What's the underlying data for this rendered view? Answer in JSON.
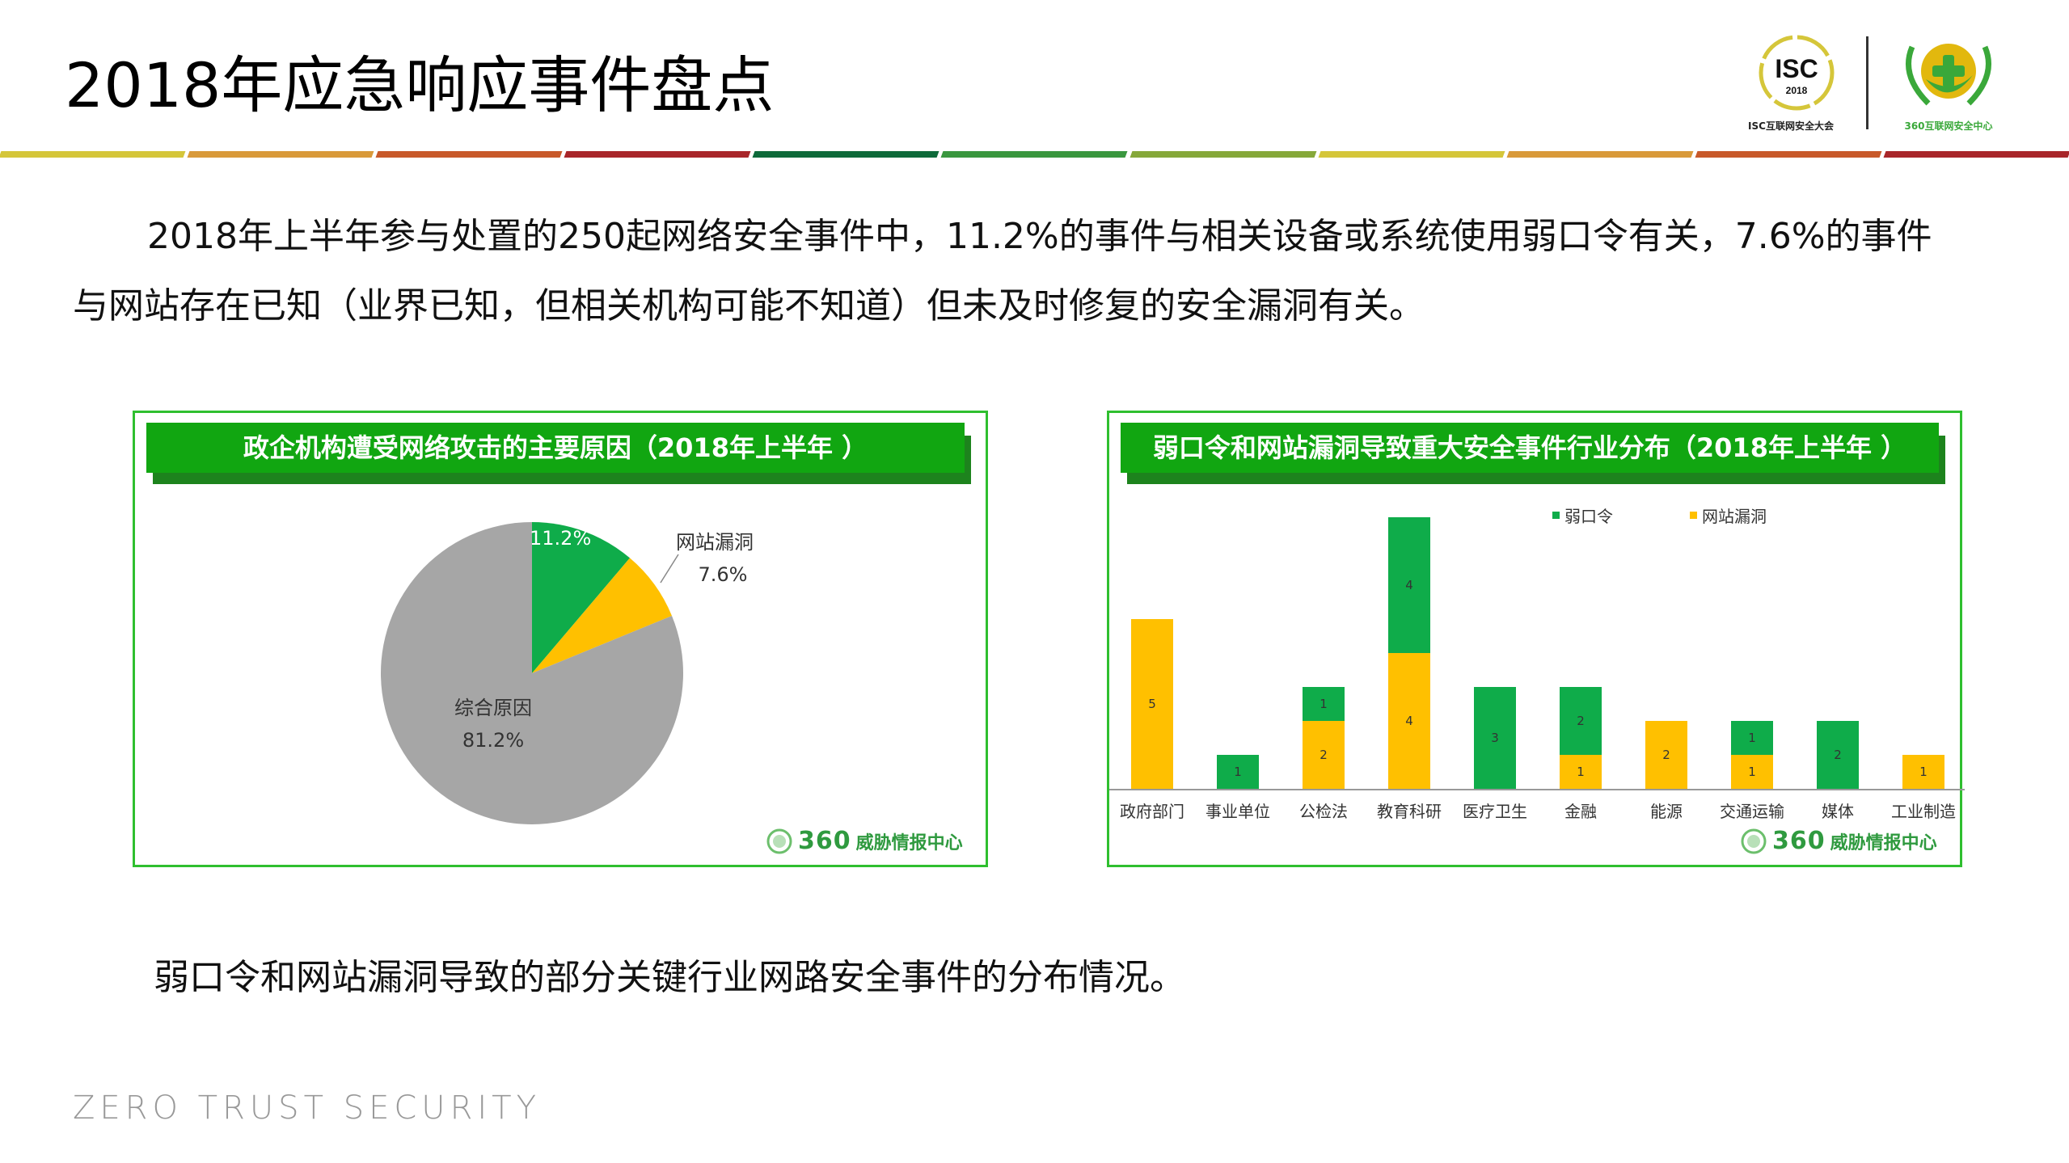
{
  "header": {
    "title": "2018年应急响应事件盘点",
    "stripe_colors": [
      "#d5c63a",
      "#d99a3a",
      "#c8592a",
      "#a8262a",
      "#0e6a3a",
      "#3a973f",
      "#86a83a",
      "#d5c63a",
      "#d99a3a",
      "#c8592a",
      "#a8262a"
    ],
    "logos": {
      "isc": {
        "text": "ISC",
        "year": "2018",
        "caption": "ISC互联网安全大会"
      },
      "center360": {
        "caption": "360互联网安全中心"
      }
    }
  },
  "intro": {
    "line1": "2018年上半年参与处置的250起网络安全事件中，11.2%的事件与相关设备或系统使用弱口令有关，7.6%的事件",
    "line2": "与网站存在已知（业界已知，但相关机构可能不知道）但未及时修复的安全漏洞有关。"
  },
  "left_panel": {
    "title": "政企机构遭受网络攻击的主要原因（2018年上半年 ）",
    "watermark": {
      "num": "360",
      "text": "威胁情报中心"
    }
  },
  "right_panel": {
    "title": "弱口令和网站漏洞导致重大安全事件行业分布（2018年上半年 ）",
    "watermark": {
      "num": "360",
      "text": "威胁情报中心"
    }
  },
  "chart_data": [
    {
      "type": "pie",
      "title": "政企机构遭受网络攻击的主要原因（2018年上半年 ）",
      "labels": [
        "弱口令",
        "网站漏洞",
        "综合原因"
      ],
      "values": [
        11.2,
        7.6,
        81.2
      ],
      "value_labels": [
        "11.2%",
        "7.6%",
        "81.2%"
      ],
      "colors": [
        "#0fac4a",
        "#ffc000",
        "#a6a6a6"
      ]
    },
    {
      "type": "bar",
      "stacked": true,
      "title": "弱口令和网站漏洞导致重大安全事件行业分布（2018年上半年 ）",
      "categories": [
        "政府部门",
        "事业单位",
        "公检法",
        "教育科研",
        "医疗卫生",
        "金融",
        "能源",
        "交通运输",
        "媒体",
        "工业制造"
      ],
      "series": [
        {
          "name": "网站漏洞",
          "color": "#ffc000",
          "values": [
            5,
            0,
            2,
            4,
            0,
            1,
            2,
            1,
            0,
            1
          ]
        },
        {
          "name": "弱口令",
          "color": "#0fac4a",
          "values": [
            0,
            1,
            1,
            4,
            3,
            2,
            0,
            1,
            2,
            0
          ]
        }
      ],
      "legend": [
        "弱口令",
        "网站漏洞"
      ],
      "legend_position": "top",
      "xlabel": "",
      "ylabel": "",
      "ylim": [
        0,
        8
      ],
      "grid": false
    }
  ],
  "summary": "弱口令和网站漏洞导致的部分关键行业网路安全事件的分布情况。",
  "footer": "ZERO TRUST SECURITY"
}
